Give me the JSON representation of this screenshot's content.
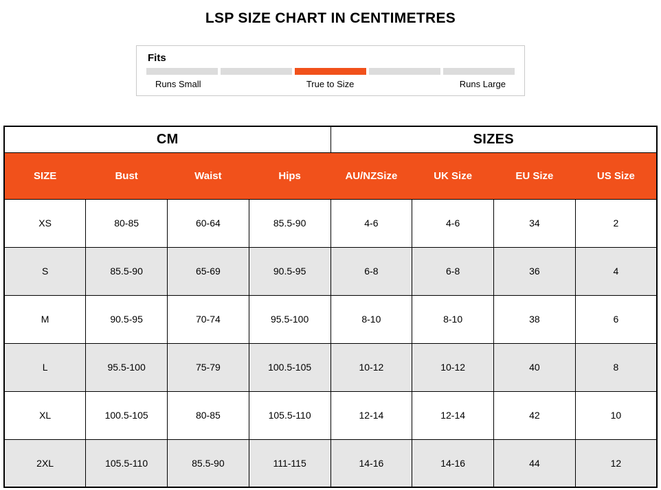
{
  "title": "LSP SIZE CHART IN CENTIMETRES",
  "fits": {
    "label": "Fits",
    "segments": 5,
    "active_index": 2,
    "active_color": "#f1511b",
    "inactive_color": "#dcdcdc",
    "scale_labels": [
      "Runs Small",
      "True to Size",
      "Runs Large"
    ]
  },
  "table": {
    "group_headers": [
      {
        "label": "CM",
        "span": 4
      },
      {
        "label": "SIZES",
        "span": 4
      }
    ],
    "columns": [
      "SIZE",
      "Bust",
      "Waist",
      "Hips",
      "AU/NZSize",
      "UK Size",
      "EU Size",
      "US Size"
    ],
    "header_bg": "#f1511b",
    "row_alt_bg": "#e6e6e6",
    "rows": [
      [
        "XS",
        "80-85",
        "60-64",
        "85.5-90",
        "4-6",
        "4-6",
        "34",
        "2"
      ],
      [
        "S",
        "85.5-90",
        "65-69",
        "90.5-95",
        "6-8",
        "6-8",
        "36",
        "4"
      ],
      [
        "M",
        "90.5-95",
        "70-74",
        "95.5-100",
        "8-10",
        "8-10",
        "38",
        "6"
      ],
      [
        "L",
        "95.5-100",
        "75-79",
        "100.5-105",
        "10-12",
        "10-12",
        "40",
        "8"
      ],
      [
        "XL",
        "100.5-105",
        "80-85",
        "105.5-110",
        "12-14",
        "12-14",
        "42",
        "10"
      ],
      [
        "2XL",
        "105.5-110",
        "85.5-90",
        "111-115",
        "14-16",
        "14-16",
        "44",
        "12"
      ]
    ]
  }
}
